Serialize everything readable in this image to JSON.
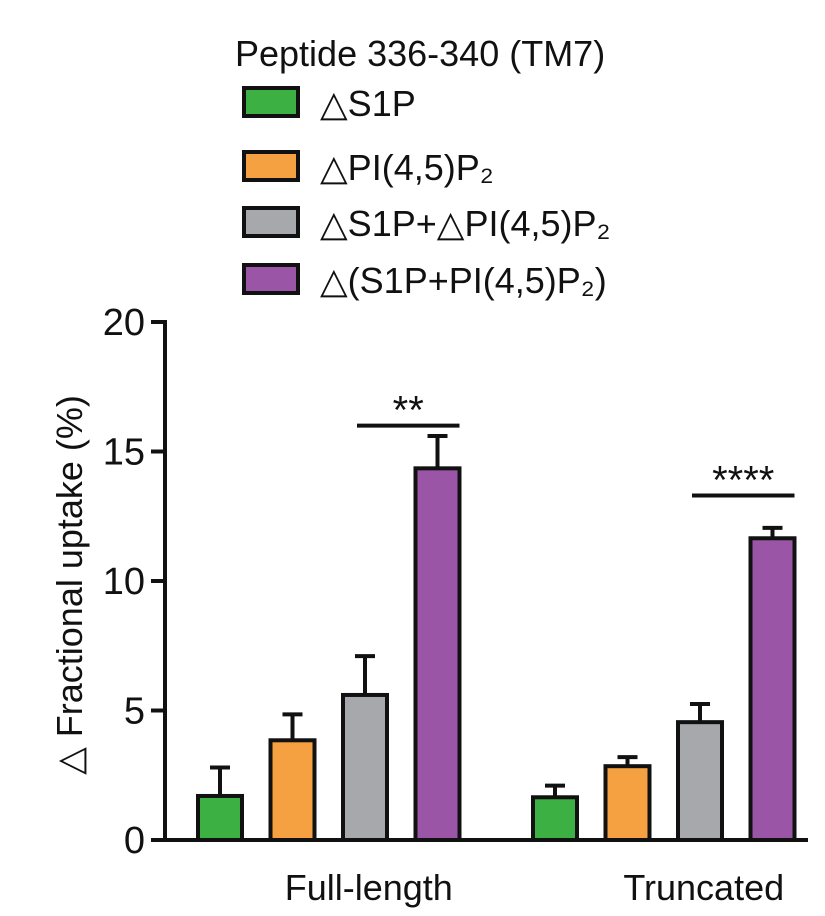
{
  "chart_data": {
    "type": "bar",
    "title": "Peptide 336-340 (TM7)",
    "ylabel": "△ Fractional uptake (%)",
    "xlabel": "",
    "ylim": [
      0,
      20
    ],
    "yticks": [
      0,
      5,
      10,
      15,
      20
    ],
    "categories": [
      "Full-length",
      "Truncated"
    ],
    "legend_position": "top",
    "grid": false,
    "series": [
      {
        "name": "△S1P",
        "color": "#3cb043",
        "values": [
          1.7,
          1.65
        ],
        "errors": [
          1.1,
          0.45
        ]
      },
      {
        "name": "△PI(4,5)P₂",
        "color": "#f5a041",
        "values": [
          3.85,
          2.85
        ],
        "errors": [
          1.0,
          0.35
        ]
      },
      {
        "name": "△S1P+△PI(4,5)P₂",
        "color": "#a6a8ab",
        "values": [
          5.6,
          4.55
        ],
        "errors": [
          1.5,
          0.7
        ]
      },
      {
        "name": "△(S1P+PI(4,5)P₂)",
        "color": "#9a55a6",
        "values": [
          14.35,
          11.65
        ],
        "errors": [
          1.25,
          0.4
        ]
      }
    ],
    "annotations": [
      {
        "category": "Full-length",
        "text": "**",
        "from_series": 2,
        "to_series": 3,
        "y": 16.0
      },
      {
        "category": "Truncated",
        "text": "****",
        "from_series": 2,
        "to_series": 3,
        "y": 13.3
      }
    ]
  }
}
